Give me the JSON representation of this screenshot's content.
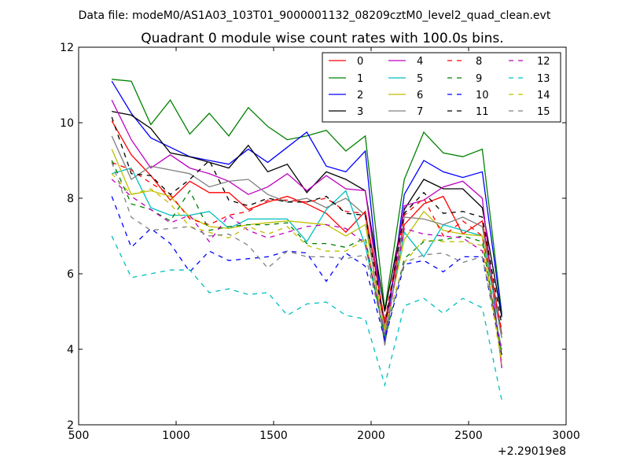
{
  "suptitle": "Data file: modeM0/AS1A03_103T01_9000001132_08209cztM0_level2_quad_clean.evt",
  "chart_data": {
    "type": "line",
    "title": "Quadrant 0 module wise count rates with 100.0s bins.",
    "xlabel": "",
    "ylabel": "",
    "xlim": [
      500,
      3000
    ],
    "ylim": [
      2,
      12
    ],
    "xticks": [
      "500",
      "1000",
      "1500",
      "2000",
      "2500",
      "3000"
    ],
    "yticks": [
      "2",
      "4",
      "6",
      "8",
      "10",
      "12"
    ],
    "offset_text": "+2.29019e8",
    "legend_position": "top-right",
    "grid": false,
    "x": [
      670,
      770,
      870,
      970,
      1070,
      1170,
      1270,
      1370,
      1470,
      1570,
      1670,
      1770,
      1870,
      1970,
      2070,
      2170,
      2270,
      2370,
      2470,
      2570,
      2670
    ],
    "series": [
      {
        "name": "0",
        "color": "#ff0000",
        "dash": "solid",
        "values": [
          10.05,
          9.15,
          8.6,
          7.95,
          8.45,
          8.15,
          8.15,
          7.7,
          7.9,
          8.05,
          7.85,
          7.6,
          7.1,
          7.65,
          4.7,
          7.3,
          7.85,
          8.05,
          7.05,
          7.4,
          4.4
        ]
      },
      {
        "name": "1",
        "color": "#008000",
        "dash": "solid",
        "values": [
          11.15,
          11.1,
          9.95,
          10.6,
          9.7,
          10.25,
          9.65,
          10.4,
          9.9,
          9.55,
          9.65,
          9.8,
          9.25,
          9.65,
          5.05,
          8.5,
          9.75,
          9.2,
          9.1,
          9.3,
          4.95
        ]
      },
      {
        "name": "2",
        "color": "#0000ff",
        "dash": "solid",
        "values": [
          11.1,
          10.25,
          9.6,
          9.35,
          9.1,
          9.0,
          8.9,
          9.3,
          8.95,
          9.35,
          9.75,
          8.85,
          8.7,
          9.25,
          4.2,
          8.1,
          9.0,
          8.7,
          8.55,
          8.7,
          4.9
        ]
      },
      {
        "name": "3",
        "color": "#000000",
        "dash": "solid",
        "values": [
          10.3,
          10.2,
          9.85,
          9.2,
          9.1,
          8.95,
          8.8,
          9.4,
          8.7,
          8.9,
          8.15,
          8.7,
          8.5,
          8.2,
          5.0,
          7.7,
          8.5,
          8.25,
          8.25,
          7.75,
          4.85
        ]
      },
      {
        "name": "4",
        "color": "#bf00bf",
        "dash": "solid",
        "values": [
          10.6,
          9.55,
          8.8,
          9.15,
          8.8,
          8.65,
          8.45,
          8.1,
          8.3,
          8.65,
          8.2,
          8.6,
          8.25,
          8.2,
          4.5,
          7.8,
          7.95,
          8.3,
          8.45,
          8.0,
          3.5
        ]
      },
      {
        "name": "5",
        "color": "#00bfbf",
        "dash": "solid",
        "values": [
          8.65,
          8.8,
          7.75,
          7.55,
          7.55,
          7.65,
          7.2,
          7.45,
          7.45,
          7.45,
          6.85,
          7.7,
          8.2,
          6.75,
          4.35,
          7.1,
          6.45,
          7.3,
          7.15,
          7.0,
          4.3
        ]
      },
      {
        "name": "6",
        "color": "#bfbf00",
        "dash": "solid",
        "values": [
          9.3,
          8.1,
          8.2,
          8.05,
          7.5,
          7.25,
          7.2,
          7.3,
          7.35,
          7.4,
          7.35,
          7.3,
          7.0,
          7.3,
          4.5,
          6.9,
          7.65,
          7.15,
          7.05,
          7.0,
          3.7
        ]
      },
      {
        "name": "7",
        "color": "#808080",
        "dash": "solid",
        "values": [
          9.65,
          8.5,
          8.85,
          8.75,
          8.65,
          8.3,
          8.45,
          8.5,
          8.1,
          7.9,
          8.0,
          7.75,
          8.0,
          7.55,
          4.1,
          7.5,
          7.45,
          7.3,
          7.5,
          7.25,
          4.3
        ]
      },
      {
        "name": "8",
        "color": "#ff0000",
        "dash": "dashed",
        "values": [
          8.95,
          8.75,
          8.4,
          8.1,
          7.45,
          7.3,
          7.55,
          7.65,
          7.95,
          7.95,
          7.9,
          8.0,
          7.65,
          7.6,
          4.75,
          7.55,
          8.0,
          7.0,
          7.4,
          7.0,
          4.5
        ]
      },
      {
        "name": "9",
        "color": "#008000",
        "dash": "dashed",
        "values": [
          9.0,
          7.85,
          7.7,
          7.4,
          8.2,
          7.15,
          7.25,
          7.3,
          7.3,
          7.35,
          6.8,
          6.8,
          6.7,
          6.95,
          4.25,
          6.4,
          6.85,
          6.9,
          7.0,
          6.85,
          3.9
        ]
      },
      {
        "name": "10",
        "color": "#0000ff",
        "dash": "dashed",
        "values": [
          8.05,
          6.7,
          7.2,
          6.8,
          6.05,
          6.6,
          6.35,
          6.4,
          6.45,
          6.6,
          6.55,
          5.8,
          6.55,
          6.2,
          4.25,
          6.25,
          6.35,
          6.05,
          6.45,
          6.45,
          3.85
        ]
      },
      {
        "name": "11",
        "color": "#000000",
        "dash": "dashed",
        "values": [
          10.15,
          8.65,
          8.6,
          8.1,
          8.5,
          9.0,
          7.95,
          7.8,
          8.0,
          7.9,
          7.9,
          8.05,
          7.6,
          7.55,
          4.6,
          7.6,
          8.15,
          7.6,
          7.65,
          7.5,
          4.65
        ]
      },
      {
        "name": "12",
        "color": "#bf00bf",
        "dash": "dashed",
        "values": [
          8.5,
          8.05,
          7.7,
          7.35,
          7.55,
          6.85,
          7.55,
          7.15,
          6.95,
          7.1,
          7.25,
          7.3,
          7.2,
          6.8,
          4.35,
          7.2,
          7.05,
          7.0,
          6.95,
          6.6,
          4.0
        ]
      },
      {
        "name": "13",
        "color": "#00bfbf",
        "dash": "dashed",
        "values": [
          7.0,
          5.9,
          6.0,
          6.1,
          6.1,
          5.5,
          5.6,
          5.45,
          5.5,
          4.9,
          5.2,
          5.25,
          4.9,
          4.8,
          3.05,
          5.15,
          5.35,
          4.95,
          5.35,
          5.1,
          2.65
        ]
      },
      {
        "name": "14",
        "color": "#bfbf00",
        "dash": "dashed",
        "values": [
          8.65,
          8.1,
          8.25,
          7.85,
          7.25,
          7.1,
          6.95,
          7.25,
          7.05,
          7.25,
          6.75,
          6.6,
          6.6,
          6.9,
          4.6,
          6.3,
          6.9,
          6.85,
          6.85,
          6.75,
          3.6
        ]
      },
      {
        "name": "15",
        "color": "#808080",
        "dash": "dashed",
        "values": [
          8.95,
          7.5,
          7.15,
          7.2,
          7.25,
          7.0,
          7.05,
          6.75,
          6.15,
          6.6,
          6.45,
          6.45,
          6.4,
          6.5,
          4.4,
          6.3,
          6.5,
          6.55,
          6.3,
          6.45,
          4.0
        ]
      }
    ]
  }
}
